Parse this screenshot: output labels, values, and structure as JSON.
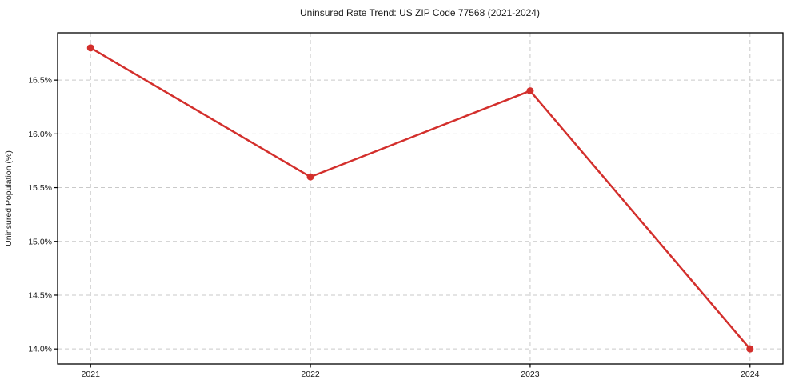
{
  "chart_data": {
    "type": "line",
    "title": "Uninsured Rate Trend: US ZIP Code 77568 (2021-2024)",
    "xlabel": "",
    "ylabel": "Uninsured Population (%)",
    "x": [
      2021,
      2022,
      2023,
      2024
    ],
    "series": [
      {
        "name": "Uninsured Rate",
        "values": [
          16.8,
          15.6,
          16.4,
          14.0
        ]
      }
    ],
    "x_tick_labels": [
      "2021",
      "2022",
      "2023",
      "2024"
    ],
    "y_ticks": [
      14.0,
      14.5,
      15.0,
      15.5,
      16.0,
      16.5
    ],
    "y_tick_labels": [
      "14.0%",
      "14.5%",
      "15.0%",
      "15.5%",
      "16.0%",
      "16.5%"
    ],
    "xlim": [
      2020.85,
      2024.15
    ],
    "ylim": [
      13.86,
      16.94
    ],
    "grid": true,
    "grid_style": "dashed",
    "legend": false,
    "line_color": "#d32f2c",
    "marker": "circle",
    "grid_color": "#c9c9c9",
    "axis_color": "#000000",
    "background_color": "#ffffff"
  }
}
